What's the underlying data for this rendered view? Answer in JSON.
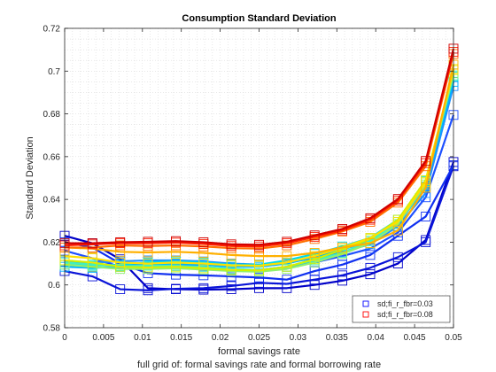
{
  "chart_data": {
    "type": "line",
    "title": "Consumption Standard Deviation",
    "xlabel": "formal savings rate",
    "ylabel": "Standard Deviation",
    "caption": "full grid of: formal savings rate and formal borrowing rate",
    "xlim": [
      0,
      0.05
    ],
    "ylim": [
      0.58,
      0.72
    ],
    "xticks": [
      0,
      0.005,
      0.01,
      0.015,
      0.02,
      0.025,
      0.03,
      0.035,
      0.04,
      0.045,
      0.05
    ],
    "xtick_labels": [
      "0",
      "0.005",
      "0.01",
      "0.015",
      "0.02",
      "0.025",
      "0.03",
      "0.035",
      "0.04",
      "0.045",
      "0.05"
    ],
    "yticks": [
      0.58,
      0.6,
      0.62,
      0.64,
      0.66,
      0.68,
      0.7,
      0.72
    ],
    "ytick_labels": [
      "0.58",
      "0.6",
      "0.62",
      "0.64",
      "0.66",
      "0.68",
      "0.7",
      "0.72"
    ],
    "grid": "minor-dotted",
    "marker": "square",
    "legend_position": "bottom-right",
    "legend": [
      {
        "label": "sd;fi_r_fbr=0.03",
        "color": "#0000ff"
      },
      {
        "label": "sd;fi_r_fbr=0.08",
        "color": "#ff0000"
      }
    ],
    "x": [
      0,
      0.00357,
      0.00714,
      0.01071,
      0.01429,
      0.01786,
      0.02143,
      0.025,
      0.02857,
      0.03214,
      0.03571,
      0.03929,
      0.04286,
      0.04643,
      0.05
    ],
    "series": [
      {
        "color": "#0000c8",
        "values": [
          0.623,
          0.6195,
          0.612,
          0.5985,
          0.598,
          0.5978,
          0.598,
          0.5985,
          0.5985,
          0.6,
          0.602,
          0.605,
          0.61,
          0.621,
          0.6575
        ]
      },
      {
        "color": "#0a14d8",
        "values": [
          0.6065,
          0.604,
          0.598,
          0.5975,
          0.5982,
          0.5985,
          0.5995,
          0.601,
          0.6005,
          0.6025,
          0.6045,
          0.608,
          0.613,
          0.62,
          0.6555
        ]
      },
      {
        "color": "#1030f0",
        "values": [
          0.62,
          0.6175,
          0.61,
          0.6055,
          0.6048,
          0.6045,
          0.604,
          0.6035,
          0.6025,
          0.6065,
          0.6095,
          0.614,
          0.623,
          0.632,
          0.656
        ]
      },
      {
        "color": "#1e50ff",
        "values": [
          0.616,
          0.6125,
          0.6085,
          0.6105,
          0.6098,
          0.6085,
          0.6072,
          0.607,
          0.6085,
          0.6105,
          0.6135,
          0.617,
          0.6245,
          0.641,
          0.6795
        ]
      },
      {
        "color": "#1e90ff",
        "values": [
          0.611,
          0.6105,
          0.611,
          0.6115,
          0.6115,
          0.611,
          0.61,
          0.6095,
          0.6105,
          0.6125,
          0.6155,
          0.619,
          0.6275,
          0.643,
          0.693
        ]
      },
      {
        "color": "#00b4ff",
        "values": [
          0.6085,
          0.608,
          0.6085,
          0.6095,
          0.61,
          0.6095,
          0.6085,
          0.6085,
          0.61,
          0.613,
          0.6165,
          0.6205,
          0.6285,
          0.646,
          0.695
        ]
      },
      {
        "color": "#00d8e8",
        "values": [
          0.6095,
          0.609,
          0.6095,
          0.6105,
          0.611,
          0.6105,
          0.6095,
          0.6095,
          0.6115,
          0.6145,
          0.618,
          0.622,
          0.6305,
          0.6485,
          0.6975
        ]
      },
      {
        "color": "#40f0c0",
        "values": [
          0.6105,
          0.6095,
          0.6088,
          0.609,
          0.609,
          0.6085,
          0.6075,
          0.607,
          0.6085,
          0.6115,
          0.615,
          0.6205,
          0.6295,
          0.648,
          0.698
        ]
      },
      {
        "color": "#90f070",
        "values": [
          0.6095,
          0.6085,
          0.6075,
          0.6075,
          0.6078,
          0.6072,
          0.6065,
          0.6062,
          0.6075,
          0.6105,
          0.6145,
          0.6195,
          0.6285,
          0.647,
          0.699
        ]
      },
      {
        "color": "#d0f000",
        "values": [
          0.6115,
          0.6105,
          0.6085,
          0.6082,
          0.6085,
          0.6078,
          0.607,
          0.6068,
          0.6085,
          0.612,
          0.6165,
          0.6215,
          0.6305,
          0.649,
          0.7005
        ]
      },
      {
        "color": "#ffe000",
        "values": [
          0.6135,
          0.6125,
          0.6105,
          0.61,
          0.6105,
          0.61,
          0.6092,
          0.609,
          0.6105,
          0.6135,
          0.6175,
          0.622,
          0.6295,
          0.648,
          0.701
        ]
      },
      {
        "color": "#ffb000",
        "values": [
          0.6175,
          0.617,
          0.6155,
          0.6152,
          0.6155,
          0.615,
          0.614,
          0.6135,
          0.6135,
          0.615,
          0.6175,
          0.6195,
          0.6255,
          0.6455,
          0.703
        ]
      },
      {
        "color": "#ff7000",
        "values": [
          0.6175,
          0.6175,
          0.6185,
          0.6182,
          0.6185,
          0.618,
          0.6172,
          0.617,
          0.6185,
          0.6215,
          0.625,
          0.6295,
          0.6385,
          0.6555,
          0.708
        ]
      },
      {
        "color": "#ff2000",
        "values": [
          0.6185,
          0.619,
          0.6195,
          0.6195,
          0.6198,
          0.6192,
          0.6182,
          0.618,
          0.6195,
          0.6225,
          0.6255,
          0.6305,
          0.6395,
          0.657,
          0.709
        ]
      },
      {
        "color": "#d00000",
        "values": [
          0.6195,
          0.6195,
          0.62,
          0.6202,
          0.6205,
          0.62,
          0.619,
          0.6188,
          0.6202,
          0.6232,
          0.6262,
          0.6312,
          0.6402,
          0.658,
          0.7105
        ]
      }
    ]
  }
}
